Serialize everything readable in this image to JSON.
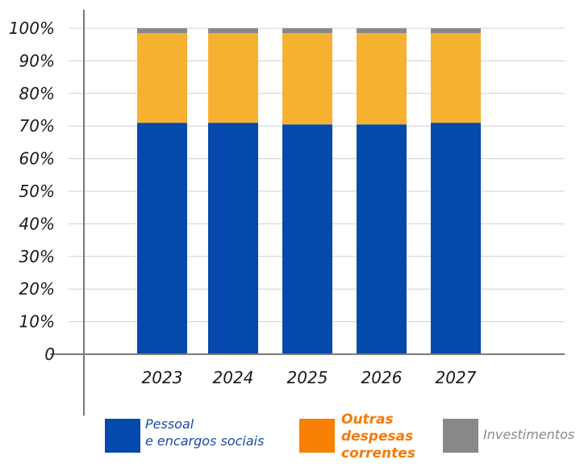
{
  "chart_data": {
    "type": "bar",
    "stacked": true,
    "categories": [
      "2023",
      "2024",
      "2025",
      "2026",
      "2027"
    ],
    "series": [
      {
        "name": "Pessoal e encargos sociais",
        "color": "#0449ab",
        "values": [
          71,
          71,
          70.5,
          70.5,
          71
        ]
      },
      {
        "name": "Outras despesas correntes",
        "color": "#f6b131",
        "values": [
          27.5,
          27.5,
          28,
          28,
          27.5
        ]
      },
      {
        "name": "Investimentos",
        "color": "#888888",
        "values": [
          1.5,
          1.5,
          1.5,
          1.5,
          1.5
        ]
      }
    ],
    "yticks": [
      "0",
      "10%",
      "20%",
      "30%",
      "40%",
      "50%",
      "60%",
      "70%",
      "80%",
      "90%",
      "100%"
    ],
    "ylim": [
      0,
      100
    ],
    "grid": true,
    "legend_position": "bottom"
  },
  "legend": {
    "personal": {
      "line1": "Pessoal",
      "line2": "e encargos sociais"
    },
    "other": {
      "line1": "Outras",
      "line2": "despesas",
      "line3": "correntes"
    },
    "investments": {
      "line1": "Investimentos"
    }
  }
}
